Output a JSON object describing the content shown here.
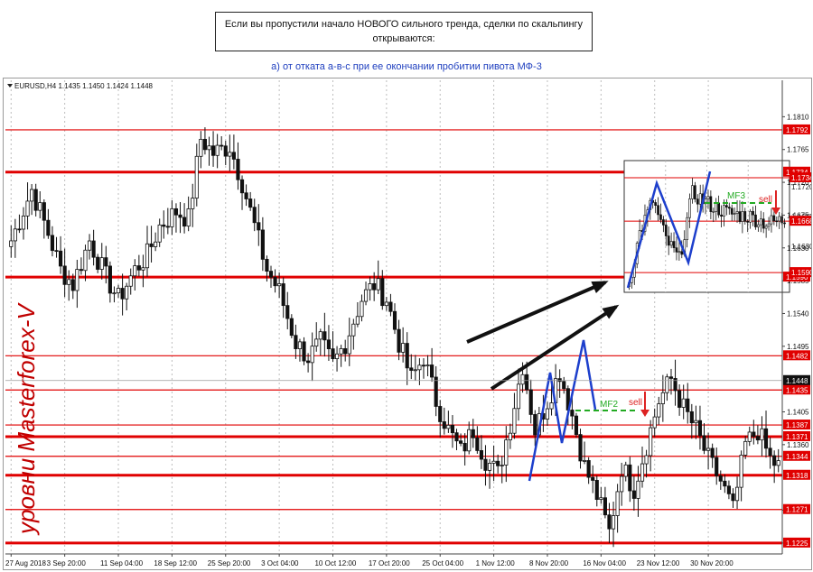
{
  "header": {
    "line1": "Если вы пропустили начало НОВОГО сильного тренда, сделки по скальпингу",
    "line2": "открываются:",
    "subtitle": "а) от отката а-в-с при ее окончании пробитии пивота МФ-3"
  },
  "chart_data": {
    "type": "candlestick",
    "title": "EURUSD,H4  1.1435 1.1450 1.1424 1.1448",
    "symbol_label": "EURUSD,H4",
    "ohlc_label": "1.1435 1.1450 1.1424 1.1448",
    "ylim": [
      1.121,
      1.186
    ],
    "grid": "vertical-dotted",
    "y_tick_labels": [
      "1.1810",
      "1.1765",
      "1.1720",
      "1.1675",
      "1.1630",
      "1.1585",
      "1.1540",
      "1.1495",
      "1.1405",
      "1.1360",
      "1.1270",
      "1.1225"
    ],
    "x_tick_labels": [
      "27 Aug 2018",
      "3 Sep 20:00",
      "11 Sep 04:00",
      "18 Sep 12:00",
      "25 Sep 20:00",
      "3 Oct 04:00",
      "10 Oct 12:00",
      "17 Oct 20:00",
      "25 Oct 04:00",
      "1 Nov 12:00",
      "8 Nov 20:00",
      "16 Nov 04:00",
      "23 Nov 12:00",
      "30 Nov 20:00"
    ],
    "x_tick_index": [
      0,
      13,
      26,
      39,
      52,
      65,
      78,
      91,
      104,
      117,
      130,
      143,
      156,
      169
    ],
    "current_price": "1.1448",
    "levels": [
      {
        "label": "1.1792",
        "value": 1.1792,
        "weight": "thin"
      },
      {
        "label": "1.1734",
        "value": 1.1734,
        "weight": "thick"
      },
      {
        "label": "1.1590",
        "value": 1.159,
        "weight": "thick"
      },
      {
        "label": "1.1482",
        "value": 1.1482,
        "weight": "thin"
      },
      {
        "label": "1.1435",
        "value": 1.1435,
        "weight": "thin"
      },
      {
        "label": "1.1387",
        "value": 1.1387,
        "weight": "thin"
      },
      {
        "label": "1.1371",
        "value": 1.1371,
        "weight": "thick"
      },
      {
        "label": "1.1344",
        "value": 1.1344,
        "weight": "thin"
      },
      {
        "label": "1.1318",
        "value": 1.1318,
        "weight": "thick"
      },
      {
        "label": "1.1271",
        "value": 1.1271,
        "weight": "thin"
      },
      {
        "label": "1.1225",
        "value": 1.1225,
        "weight": "thick"
      }
    ],
    "anchors": [
      [
        0,
        1.164
      ],
      [
        5,
        1.171
      ],
      [
        9,
        1.165
      ],
      [
        12,
        1.16
      ],
      [
        15,
        1.158
      ],
      [
        19,
        1.164
      ],
      [
        23,
        1.159
      ],
      [
        26,
        1.156
      ],
      [
        30,
        1.16
      ],
      [
        33,
        1.162
      ],
      [
        36,
        1.166
      ],
      [
        40,
        1.168
      ],
      [
        43,
        1.167
      ],
      [
        46,
        1.178
      ],
      [
        49,
        1.176
      ],
      [
        53,
        1.177
      ],
      [
        56,
        1.172
      ],
      [
        59,
        1.166
      ],
      [
        62,
        1.16
      ],
      [
        65,
        1.157
      ],
      [
        69,
        1.15
      ],
      [
        72,
        1.148
      ],
      [
        75,
        1.15
      ],
      [
        78,
        1.147
      ],
      [
        81,
        1.15
      ],
      [
        85,
        1.156
      ],
      [
        88,
        1.158
      ],
      [
        91,
        1.156
      ],
      [
        94,
        1.15
      ],
      [
        97,
        1.145
      ],
      [
        100,
        1.148
      ],
      [
        103,
        1.142
      ],
      [
        106,
        1.138
      ],
      [
        109,
        1.135
      ],
      [
        112,
        1.138
      ],
      [
        115,
        1.134
      ],
      [
        118,
        1.132
      ],
      [
        121,
        1.139
      ],
      [
        124,
        1.147
      ],
      [
        127,
        1.138
      ],
      [
        130,
        1.142
      ],
      [
        133,
        1.146
      ],
      [
        136,
        1.14
      ],
      [
        139,
        1.133
      ],
      [
        142,
        1.129
      ],
      [
        145,
        1.124
      ],
      [
        148,
        1.133
      ],
      [
        151,
        1.13
      ],
      [
        154,
        1.136
      ],
      [
        157,
        1.142
      ],
      [
        160,
        1.145
      ],
      [
        163,
        1.141
      ],
      [
        166,
        1.138
      ],
      [
        169,
        1.134
      ],
      [
        172,
        1.131
      ],
      [
        175,
        1.127
      ],
      [
        178,
        1.136
      ],
      [
        181,
        1.138
      ],
      [
        184,
        1.134
      ],
      [
        186,
        1.133
      ]
    ],
    "annotations": {
      "main_mf_label": "MF2",
      "main_sell_label": "sell",
      "inset_mf_label": "MF3",
      "inset_sell_label": "sell",
      "watermark": "уровни Masterforex-V"
    },
    "inset": {
      "y_tick_labels": [
        "1.1720",
        "1.1675",
        "1.1630"
      ],
      "levels": [
        {
          "label": "1.1734",
          "value": 1.1734
        },
        {
          "label": "1.1668",
          "value": 1.1668
        },
        {
          "label": "1.1590",
          "value": 1.159
        }
      ],
      "ylim": [
        1.156,
        1.176
      ]
    }
  },
  "colors": {
    "level": "#e00000",
    "wave": "#1d3fcc",
    "pivot": "#22aa22",
    "sell_arrow": "#dd2222",
    "grid": "#bdbdbd",
    "candle": "#111111",
    "subtitle": "#1f3fbf"
  }
}
